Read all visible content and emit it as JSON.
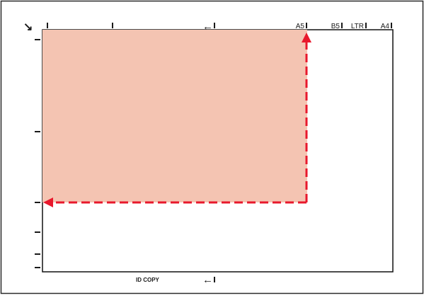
{
  "labels": {
    "corner_arrow": "↘",
    "left_arrow_symbol": "←",
    "a5": "A5",
    "b5": "B5",
    "ltr": "LTR",
    "a4": "A4",
    "id_copy": "ID COPY"
  },
  "colors": {
    "frame": "#2a2a2a",
    "platen_line": "#111111",
    "document_fill": "#f4c4b2",
    "arrow": "#e8182c",
    "mark": "#1a1a1a",
    "background": "#ffffff"
  },
  "icons": {
    "corner": "diagonal-arrow-icon",
    "alignment": "left-arrow-icon",
    "direction": "triangle-arrow-icon"
  }
}
